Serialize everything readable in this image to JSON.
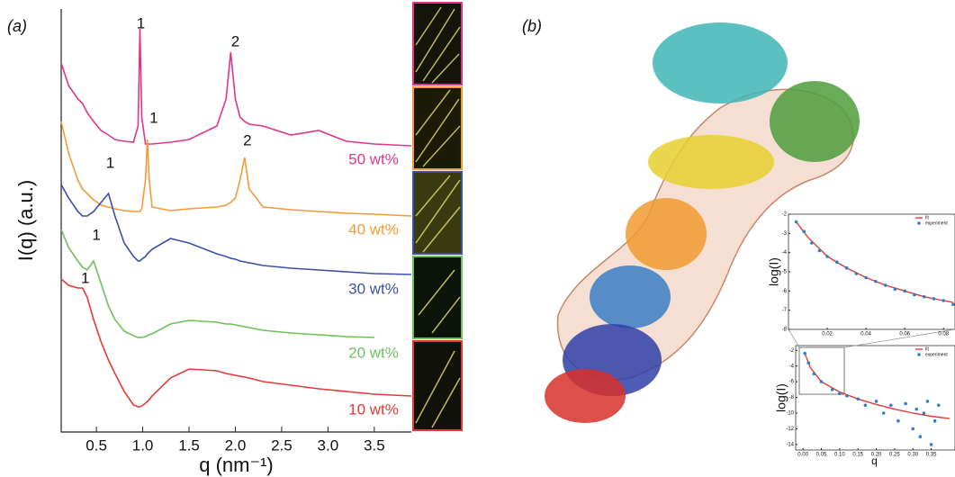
{
  "panel_labels": [
    "(a)",
    "(b)"
  ],
  "chart_data": [
    {
      "type": "line",
      "x_label": "q (nm⁻¹)",
      "y_label": "I(q) (a.u.)",
      "x": [
        0.12,
        0.2,
        0.3,
        0.35,
        0.4,
        0.47,
        0.55,
        0.63,
        0.7,
        0.8,
        0.9,
        0.95,
        0.97,
        0.99,
        1.03,
        1.05,
        1.07,
        1.1,
        1.3,
        1.5,
        1.8,
        1.9,
        1.95,
        2.0,
        2.05,
        2.1,
        2.15,
        2.3,
        2.6,
        2.9,
        3.2,
        3.5,
        3.9
      ],
      "xlim": [
        0.12,
        3.9
      ],
      "ylim": [
        0,
        47
      ],
      "xticks": [
        0.5,
        {
          "value": 1,
          "label": "1.0"
        },
        1.5,
        {
          "value": 2,
          "label": "2.0"
        },
        2.5,
        {
          "value": 3,
          "label": "3.0"
        },
        3.5
      ],
      "series": [
        {
          "name": "50 wt%",
          "color": "#e0358a",
          "values": [
            41,
            38.5,
            37,
            36.5,
            35.5,
            34.5,
            33.5,
            33,
            32.5,
            32.3,
            32.2,
            34,
            44.8,
            35,
            32,
            32,
            32,
            32,
            32.2,
            32.5,
            34,
            37,
            42.2,
            37,
            35,
            34.5,
            34.2,
            34,
            33,
            33.5,
            32.3,
            32,
            31.8
          ]
        },
        {
          "name": "40 wt%",
          "color": "#f39a3a",
          "values": [
            34.5,
            31,
            28,
            27,
            26.5,
            25.8,
            25.2,
            25,
            24.8,
            24.6,
            24.5,
            24.5,
            24.5,
            24.8,
            28,
            32.5,
            28,
            25,
            24.6,
            24.8,
            25,
            25.2,
            25.5,
            26,
            28,
            30.5,
            27,
            25,
            24.7,
            24.5,
            24.3,
            24.2,
            24
          ]
        },
        {
          "name": "30 wt%",
          "color": "#3b4fa8",
          "values": [
            27.5,
            26,
            24.5,
            24,
            24,
            24.5,
            25.5,
            26.5,
            24,
            21,
            19.5,
            19,
            19,
            19.2,
            19.5,
            19.8,
            20,
            20.3,
            21.5,
            21,
            19.8,
            19.5,
            19.3,
            19.2,
            19,
            18.9,
            18.8,
            18.5,
            18.2,
            18,
            17.8,
            17.6,
            17.5
          ]
        },
        {
          "name": "20 wt%",
          "color": "#6cc15a",
          "values": [
            22.5,
            20.5,
            19,
            18.3,
            18,
            19,
            16.5,
            14,
            12.5,
            11.2,
            10.7,
            10.5,
            10.5,
            10.5,
            10.6,
            10.7,
            10.8,
            10.9,
            12,
            12.4,
            12.2,
            12,
            12,
            11.9,
            11.8,
            11.7,
            11.6,
            11.3,
            11,
            10.8,
            10.6,
            10.5,
            null
          ]
        },
        {
          "name": "10 wt%",
          "color": "#e53935",
          "values": [
            17,
            16.3,
            16,
            16,
            15,
            12.5,
            10,
            8,
            6.5,
            4.5,
            3,
            2.8,
            2.8,
            2.9,
            3.2,
            3.4,
            3.6,
            4,
            6,
            7,
            6.8,
            6.5,
            6.4,
            6.3,
            6.2,
            6.1,
            6,
            5.6,
            5.2,
            4.8,
            4.5,
            4.2,
            4
          ]
        }
      ],
      "annotations": [
        {
          "text": "1",
          "x": 0.98,
          "y": 45.3
        },
        {
          "text": "2",
          "x": 2.0,
          "y": 43.3
        },
        {
          "text": "1",
          "x": 1.12,
          "y": 34.8
        },
        {
          "text": "2",
          "x": 2.13,
          "y": 32.3
        },
        {
          "text": "1",
          "x": 0.65,
          "y": 29.8
        },
        {
          "text": "1",
          "x": 0.5,
          "y": 21.8
        },
        {
          "text": "1",
          "x": 0.38,
          "y": 17
        }
      ]
    },
    {
      "type": "line",
      "y_label": "log(I)",
      "xlim": [
        0,
        0.085
      ],
      "ylim": [
        -8,
        -2
      ],
      "xticks": [
        0.02,
        0.04,
        0.06,
        0.08
      ],
      "yticks": [
        -2,
        -3,
        -4,
        -5,
        -6,
        -7,
        -8
      ],
      "series": [
        {
          "name": "fit",
          "color": "#e53935",
          "style": "line",
          "x": [
            0.004,
            0.01,
            0.02,
            0.03,
            0.04,
            0.05,
            0.06,
            0.07,
            0.08,
            0.085
          ],
          "values": [
            -2.4,
            -3.2,
            -4.2,
            -4.8,
            -5.3,
            -5.7,
            -6.0,
            -6.3,
            -6.5,
            -6.6
          ]
        },
        {
          "name": "experiment",
          "color": "#2f7fc1",
          "style": "points",
          "x": [
            0.004,
            0.008,
            0.012,
            0.016,
            0.02,
            0.025,
            0.03,
            0.035,
            0.04,
            0.045,
            0.05,
            0.055,
            0.06,
            0.065,
            0.07,
            0.075,
            0.08,
            0.085
          ],
          "values": [
            -2.4,
            -2.9,
            -3.5,
            -3.9,
            -4.2,
            -4.5,
            -4.8,
            -5.1,
            -5.3,
            -5.5,
            -5.7,
            -5.9,
            -6.0,
            -6.2,
            -6.3,
            -6.4,
            -6.5,
            -6.7
          ]
        }
      ]
    },
    {
      "type": "line",
      "x_label": "q",
      "y_label": "log(I)",
      "xlim": [
        -0.02,
        0.41
      ],
      "ylim": [
        -14.7,
        -1.4
      ],
      "xticks": [
        {
          "value": 0,
          "label": "0.00"
        },
        0.05,
        {
          "value": 0.1,
          "label": "0.10"
        },
        0.15,
        {
          "value": 0.2,
          "label": "0.20"
        },
        0.25,
        {
          "value": 0.3,
          "label": "0.30"
        },
        0.35
      ],
      "yticks": [
        -2,
        -4,
        -6,
        -8,
        -10,
        -12,
        -14
      ],
      "series": [
        {
          "name": "fit",
          "color": "#e53935",
          "style": "line",
          "x": [
            0.005,
            0.02,
            0.05,
            0.1,
            0.15,
            0.2,
            0.25,
            0.3,
            0.35,
            0.4
          ],
          "values": [
            -2.4,
            -4.2,
            -6,
            -7.3,
            -8.2,
            -8.9,
            -9.5,
            -10,
            -10.4,
            -10.7
          ]
        },
        {
          "name": "experiment",
          "color": "#2f7fc1",
          "style": "points",
          "x": [
            0.005,
            0.015,
            0.03,
            0.05,
            0.08,
            0.1,
            0.12,
            0.15,
            0.17,
            0.2,
            0.22,
            0.24,
            0.26,
            0.28,
            0.3,
            0.31,
            0.32,
            0.33,
            0.34,
            0.35,
            0.36,
            0.37
          ],
          "values": [
            -2.4,
            -3.6,
            -5,
            -6,
            -7,
            -7.5,
            -7.8,
            -8.2,
            -9,
            -8.5,
            -10,
            -9,
            -11,
            -8.8,
            -12,
            -9.5,
            -13,
            -10,
            -8.5,
            -14,
            -11,
            -9
          ]
        }
      ]
    }
  ]
}
